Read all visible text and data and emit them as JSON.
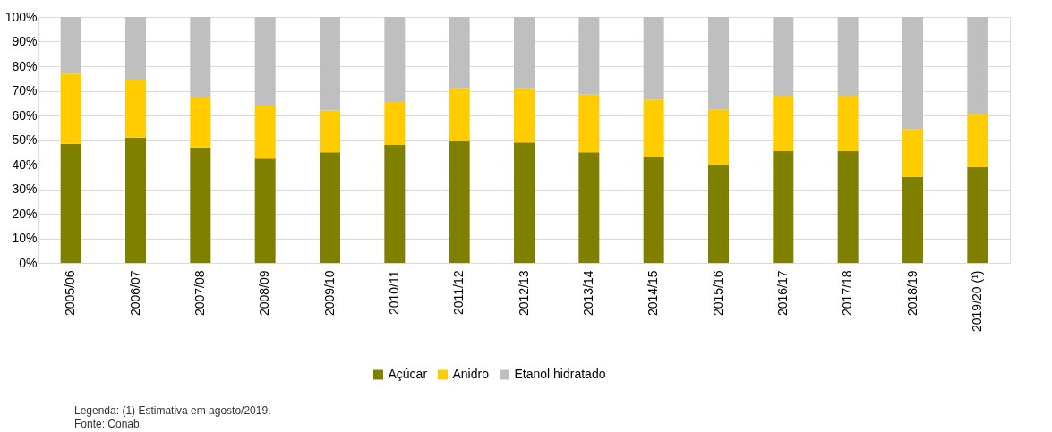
{
  "chart_data": {
    "type": "bar",
    "stacked": true,
    "categories": [
      "2005/06",
      "2006/07",
      "2007/08",
      "2008/09",
      "2009/10",
      "2010/11",
      "2011/12",
      "2012/13",
      "2013/14",
      "2014/15",
      "2015/16",
      "2016/17",
      "2017/18",
      "2018/19",
      "2019/20 (¹)"
    ],
    "series": [
      {
        "name": "Açúcar",
        "color": "#808000",
        "values": [
          48.5,
          51,
          47,
          42.5,
          45,
          48,
          49.5,
          49,
          45,
          43,
          40,
          45.5,
          45.5,
          35,
          39
        ]
      },
      {
        "name": "Anidro",
        "color": "#ffcc00",
        "values": [
          28.5,
          23.5,
          20.5,
          21.5,
          17,
          17.5,
          21.5,
          22,
          23.5,
          23.5,
          22.5,
          22.5,
          22.5,
          19.5,
          21.5
        ]
      },
      {
        "name": "Etanol hidratado",
        "color": "#bfbfbf",
        "values": [
          23,
          25.5,
          32.5,
          36,
          38,
          34.5,
          29,
          29,
          31.5,
          33.5,
          37.5,
          32,
          32,
          45.5,
          39.5
        ]
      }
    ],
    "ylim": [
      0,
      100
    ],
    "yticks": [
      {
        "value": 0,
        "label": "0%"
      },
      {
        "value": 10,
        "label": "10%"
      },
      {
        "value": 20,
        "label": "20%"
      },
      {
        "value": 30,
        "label": "30%"
      },
      {
        "value": 40,
        "label": "40%"
      },
      {
        "value": 50,
        "label": "50%"
      },
      {
        "value": 60,
        "label": "60%"
      },
      {
        "value": 70,
        "label": "70%"
      },
      {
        "value": 80,
        "label": "80%"
      },
      {
        "value": 90,
        "label": "90%"
      },
      {
        "value": 100,
        "label": "100%"
      }
    ],
    "grid": "y",
    "legend": "bottom",
    "annotations": [
      "Legenda: (1) Estimativa em agosto/2019.",
      "Fonte: Conab."
    ]
  }
}
